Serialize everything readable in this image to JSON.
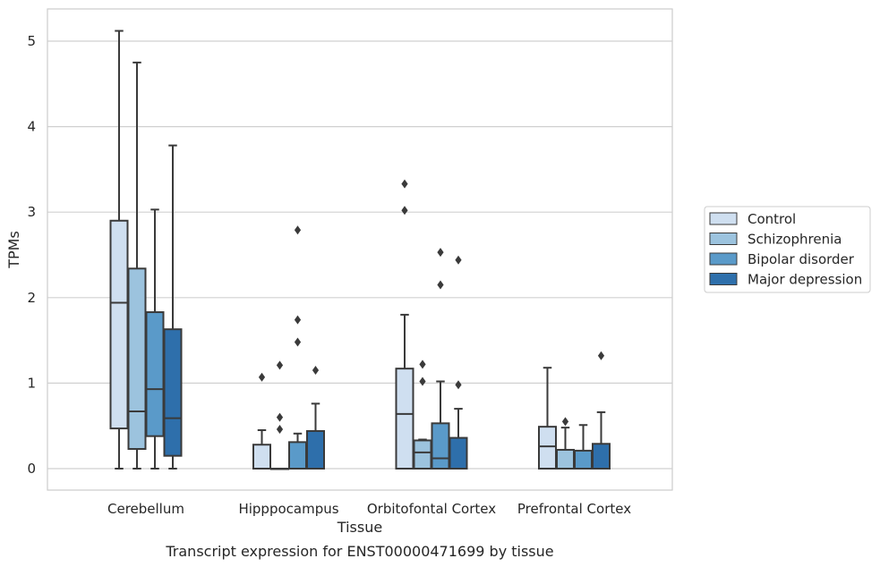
{
  "caption": "Transcript expression for ENST00000471699 by tissue",
  "chart_data": {
    "type": "box",
    "xlabel": "Tissue",
    "ylabel": "TPMs",
    "ylim": [
      -0.25,
      5.4
    ],
    "yticks": [
      0,
      1,
      2,
      3,
      4,
      5
    ],
    "grid": "horizontal",
    "legend_position": "right",
    "categories": [
      "Cerebellum",
      "Hipppocampus",
      "Orbitofontal Cortex",
      "Prefrontal Cortex"
    ],
    "series": [
      {
        "name": "Control",
        "color": "#cfdff0",
        "boxes": [
          {
            "whisker_low": 0,
            "q1": 0.47,
            "median": 1.94,
            "q3": 2.9,
            "whisker_high": 5.12,
            "outliers": []
          },
          {
            "whisker_low": 0,
            "q1": 0,
            "median": 0,
            "q3": 0.28,
            "whisker_high": 0.45,
            "outliers": [
              1.07
            ]
          },
          {
            "whisker_low": 0,
            "q1": 0,
            "median": 0.64,
            "q3": 1.17,
            "whisker_high": 1.8,
            "outliers": [
              3.33,
              3.02
            ]
          },
          {
            "whisker_low": 0,
            "q1": 0,
            "median": 0.26,
            "q3": 0.49,
            "whisker_high": 1.18,
            "outliers": []
          }
        ]
      },
      {
        "name": "Schizophrenia",
        "color": "#9cc3de",
        "boxes": [
          {
            "whisker_low": 0,
            "q1": 0.23,
            "median": 0.67,
            "q3": 2.34,
            "whisker_high": 4.75,
            "outliers": []
          },
          {
            "whisker_low": 0,
            "q1": 0,
            "median": 0,
            "q3": 0,
            "whisker_high": 0,
            "outliers": [
              1.21,
              0.6,
              0.46
            ]
          },
          {
            "whisker_low": 0,
            "q1": 0,
            "median": 0.19,
            "q3": 0.33,
            "whisker_high": 0.34,
            "outliers": [
              1.22,
              1.02
            ]
          },
          {
            "whisker_low": 0,
            "q1": 0,
            "median": 0,
            "q3": 0.22,
            "whisker_high": 0.48,
            "outliers": [
              0.55
            ]
          }
        ]
      },
      {
        "name": "Bipolar disorder",
        "color": "#5a9ac9",
        "boxes": [
          {
            "whisker_low": 0,
            "q1": 0.38,
            "median": 0.93,
            "q3": 1.83,
            "whisker_high": 3.03,
            "outliers": []
          },
          {
            "whisker_low": 0,
            "q1": 0,
            "median": 0,
            "q3": 0.31,
            "whisker_high": 0.41,
            "outliers": [
              2.79,
              1.74,
              1.48
            ]
          },
          {
            "whisker_low": 0,
            "q1": 0,
            "median": 0.12,
            "q3": 0.53,
            "whisker_high": 1.02,
            "outliers": [
              2.53,
              2.15
            ]
          },
          {
            "whisker_low": 0,
            "q1": 0,
            "median": 0,
            "q3": 0.21,
            "whisker_high": 0.51,
            "outliers": []
          }
        ]
      },
      {
        "name": "Major depression",
        "color": "#2e6fab",
        "boxes": [
          {
            "whisker_low": 0,
            "q1": 0.15,
            "median": 0.59,
            "q3": 1.63,
            "whisker_high": 3.78,
            "outliers": []
          },
          {
            "whisker_low": 0,
            "q1": 0,
            "median": 0,
            "q3": 0.44,
            "whisker_high": 0.76,
            "outliers": [
              1.15
            ]
          },
          {
            "whisker_low": 0,
            "q1": 0,
            "median": 0,
            "q3": 0.36,
            "whisker_high": 0.7,
            "outliers": [
              2.44,
              0.98
            ]
          },
          {
            "whisker_low": 0,
            "q1": 0,
            "median": 0,
            "q3": 0.29,
            "whisker_high": 0.66,
            "outliers": [
              1.32
            ]
          }
        ]
      }
    ]
  }
}
